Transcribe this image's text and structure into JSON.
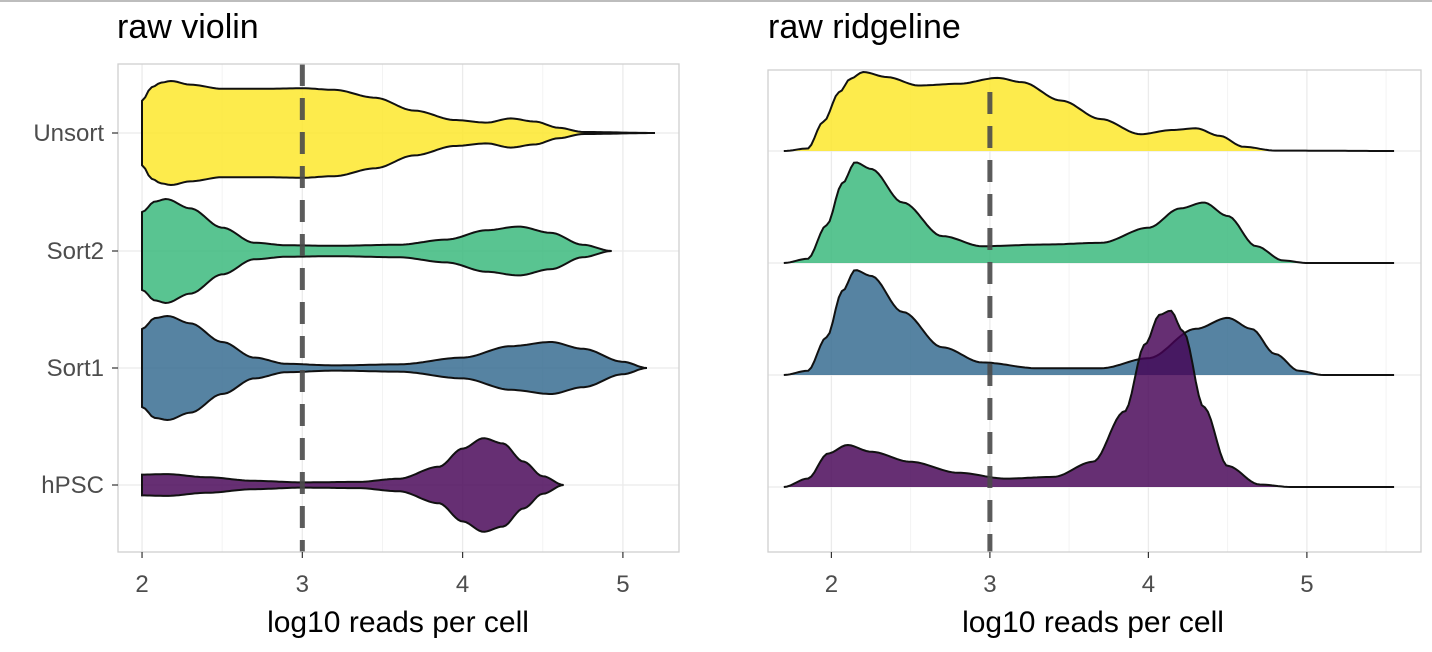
{
  "colors": {
    "Unsort": "#FDE725",
    "Sort2": "#35B779",
    "Sort1": "#31688E",
    "hPSC": "#440154",
    "grid": "#ebebeb",
    "frame": "#cfcfcf",
    "threshold": "#4a4a4a"
  },
  "chart_data": [
    {
      "type": "violin",
      "title": "raw violin",
      "xlabel": "log10 reads per cell",
      "ylabel": "",
      "xlim": [
        1.85,
        5.35
      ],
      "xticks": [
        2,
        3,
        4,
        5
      ],
      "categories": [
        "Unsort",
        "Sort2",
        "Sort1",
        "hPSC"
      ],
      "threshold_x": 3,
      "grid": true,
      "legend": "none",
      "series": [
        {
          "name": "Unsort",
          "x_range": [
            2.0,
            5.2
          ],
          "width_profile": [
            [
              2.0,
              0.62
            ],
            [
              2.06,
              0.88
            ],
            [
              2.12,
              0.97
            ],
            [
              2.18,
              1.0
            ],
            [
              2.3,
              0.93
            ],
            [
              2.5,
              0.85
            ],
            [
              2.75,
              0.85
            ],
            [
              3.0,
              0.86
            ],
            [
              3.2,
              0.83
            ],
            [
              3.45,
              0.68
            ],
            [
              3.7,
              0.43
            ],
            [
              3.95,
              0.25
            ],
            [
              4.15,
              0.2
            ],
            [
              4.3,
              0.28
            ],
            [
              4.45,
              0.22
            ],
            [
              4.6,
              0.1
            ],
            [
              4.75,
              0.02
            ],
            [
              5.2,
              0.0
            ]
          ]
        },
        {
          "name": "Sort2",
          "x_range": [
            2.0,
            4.93
          ],
          "width_profile": [
            [
              2.0,
              0.75
            ],
            [
              2.08,
              0.95
            ],
            [
              2.15,
              1.0
            ],
            [
              2.3,
              0.82
            ],
            [
              2.5,
              0.45
            ],
            [
              2.7,
              0.16
            ],
            [
              2.9,
              0.11
            ],
            [
              3.2,
              0.1
            ],
            [
              3.6,
              0.12
            ],
            [
              3.9,
              0.22
            ],
            [
              4.15,
              0.4
            ],
            [
              4.35,
              0.47
            ],
            [
              4.55,
              0.35
            ],
            [
              4.75,
              0.12
            ],
            [
              4.93,
              0.0
            ]
          ]
        },
        {
          "name": "Sort1",
          "x_range": [
            2.0,
            5.15
          ],
          "width_profile": [
            [
              2.0,
              0.75
            ],
            [
              2.08,
              0.96
            ],
            [
              2.16,
              1.0
            ],
            [
              2.3,
              0.86
            ],
            [
              2.5,
              0.5
            ],
            [
              2.7,
              0.2
            ],
            [
              2.9,
              0.08
            ],
            [
              3.2,
              0.05
            ],
            [
              3.6,
              0.07
            ],
            [
              4.0,
              0.2
            ],
            [
              4.3,
              0.42
            ],
            [
              4.55,
              0.5
            ],
            [
              4.75,
              0.37
            ],
            [
              5.0,
              0.12
            ],
            [
              5.15,
              0.0
            ]
          ]
        },
        {
          "name": "hPSC",
          "x_range": [
            2.0,
            4.63
          ],
          "width_profile": [
            [
              2.0,
              0.2
            ],
            [
              2.15,
              0.21
            ],
            [
              2.4,
              0.15
            ],
            [
              2.7,
              0.08
            ],
            [
              3.0,
              0.05
            ],
            [
              3.35,
              0.06
            ],
            [
              3.6,
              0.12
            ],
            [
              3.85,
              0.35
            ],
            [
              4.0,
              0.7
            ],
            [
              4.13,
              0.9
            ],
            [
              4.25,
              0.8
            ],
            [
              4.38,
              0.45
            ],
            [
              4.5,
              0.17
            ],
            [
              4.63,
              0.0
            ]
          ]
        }
      ]
    },
    {
      "type": "ridgeline",
      "title": "raw ridgeline",
      "xlabel": "log10 reads per cell",
      "ylabel": "",
      "xlim": [
        1.6,
        5.72
      ],
      "xticks": [
        2,
        3,
        4,
        5
      ],
      "categories": [
        "Unsort",
        "Sort2",
        "Sort1",
        "hPSC"
      ],
      "threshold_x": 3,
      "grid": true,
      "legend": "none",
      "series": [
        {
          "name": "Unsort",
          "x_range": [
            1.7,
            5.55
          ],
          "density_profile": [
            [
              1.7,
              0.0
            ],
            [
              1.85,
              0.03
            ],
            [
              1.95,
              0.35
            ],
            [
              2.05,
              0.7
            ],
            [
              2.12,
              0.86
            ],
            [
              2.2,
              0.94
            ],
            [
              2.35,
              0.88
            ],
            [
              2.55,
              0.78
            ],
            [
              2.8,
              0.8
            ],
            [
              3.05,
              0.87
            ],
            [
              3.2,
              0.82
            ],
            [
              3.45,
              0.6
            ],
            [
              3.7,
              0.38
            ],
            [
              3.95,
              0.2
            ],
            [
              4.15,
              0.25
            ],
            [
              4.3,
              0.27
            ],
            [
              4.45,
              0.18
            ],
            [
              4.6,
              0.05
            ],
            [
              4.8,
              0.005
            ],
            [
              5.55,
              0.0
            ]
          ]
        },
        {
          "name": "Sort2",
          "x_range": [
            1.7,
            5.55
          ],
          "density_profile": [
            [
              1.7,
              0.0
            ],
            [
              1.85,
              0.05
            ],
            [
              1.97,
              0.45
            ],
            [
              2.07,
              0.95
            ],
            [
              2.15,
              1.2
            ],
            [
              2.25,
              1.12
            ],
            [
              2.45,
              0.72
            ],
            [
              2.7,
              0.32
            ],
            [
              2.95,
              0.2
            ],
            [
              3.35,
              0.22
            ],
            [
              3.7,
              0.24
            ],
            [
              4.0,
              0.42
            ],
            [
              4.2,
              0.65
            ],
            [
              4.35,
              0.72
            ],
            [
              4.5,
              0.56
            ],
            [
              4.68,
              0.2
            ],
            [
              4.85,
              0.03
            ],
            [
              5.0,
              0.0
            ],
            [
              5.55,
              0.0
            ]
          ]
        },
        {
          "name": "Sort1",
          "x_range": [
            1.7,
            5.55
          ],
          "density_profile": [
            [
              1.7,
              0.0
            ],
            [
              1.85,
              0.05
            ],
            [
              1.97,
              0.45
            ],
            [
              2.07,
              1.0
            ],
            [
              2.15,
              1.25
            ],
            [
              2.25,
              1.18
            ],
            [
              2.45,
              0.75
            ],
            [
              2.7,
              0.33
            ],
            [
              2.95,
              0.15
            ],
            [
              3.3,
              0.08
            ],
            [
              3.7,
              0.08
            ],
            [
              4.0,
              0.2
            ],
            [
              4.3,
              0.55
            ],
            [
              4.5,
              0.68
            ],
            [
              4.65,
              0.55
            ],
            [
              4.8,
              0.25
            ],
            [
              4.95,
              0.05
            ],
            [
              5.1,
              0.0
            ],
            [
              5.55,
              0.0
            ]
          ]
        },
        {
          "name": "hPSC",
          "x_range": [
            1.7,
            5.55
          ],
          "density_profile": [
            [
              1.7,
              0.0
            ],
            [
              1.85,
              0.1
            ],
            [
              1.98,
              0.4
            ],
            [
              2.1,
              0.5
            ],
            [
              2.25,
              0.42
            ],
            [
              2.5,
              0.3
            ],
            [
              2.8,
              0.17
            ],
            [
              3.1,
              0.1
            ],
            [
              3.4,
              0.12
            ],
            [
              3.65,
              0.3
            ],
            [
              3.85,
              0.9
            ],
            [
              3.98,
              1.7
            ],
            [
              4.07,
              2.05
            ],
            [
              4.14,
              2.1
            ],
            [
              4.22,
              1.85
            ],
            [
              4.35,
              0.95
            ],
            [
              4.5,
              0.25
            ],
            [
              4.7,
              0.03
            ],
            [
              4.9,
              0.0
            ],
            [
              5.55,
              0.0
            ]
          ]
        }
      ]
    }
  ]
}
